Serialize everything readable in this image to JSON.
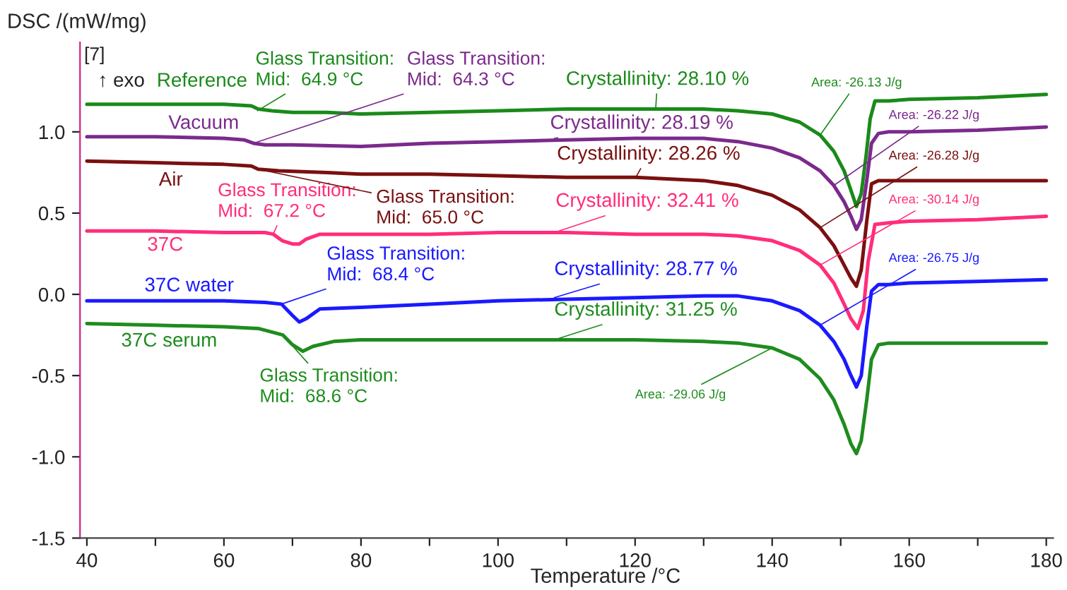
{
  "chart_data": {
    "type": "line",
    "xlabel": "Temperature /°C",
    "ylabel": "DSC /(mW/mg)",
    "xlim": [
      39,
      181
    ],
    "ylim": [
      -1.5,
      1.55
    ],
    "xticks": [
      40,
      {
        "value": 50,
        "label": null
      },
      60,
      {
        "value": 70,
        "label": null
      },
      80,
      {
        "value": 90,
        "label": null
      },
      100,
      {
        "value": 110,
        "label": null
      },
      120,
      {
        "value": 130,
        "label": null
      },
      140,
      {
        "value": 150,
        "label": null
      },
      160,
      {
        "value": 170,
        "label": null
      },
      180
    ],
    "yticks": [
      {
        "value": -1.5,
        "label": "-1.5"
      },
      {
        "value": -1.0,
        "label": "-1.0"
      },
      {
        "value": -0.5,
        "label": "-0.5"
      },
      {
        "value": 0.0,
        "label": "0.0"
      },
      {
        "value": 0.5,
        "label": "0.5"
      },
      {
        "value": 1.0,
        "label": "1.0"
      }
    ],
    "grid": false,
    "legend": false,
    "series": [
      {
        "name": "Reference",
        "color": "#1a8a1a",
        "x": [
          40,
          50,
          60,
          64,
          65,
          67,
          70,
          75,
          80,
          90,
          100,
          110,
          120,
          130,
          135,
          140,
          144,
          147,
          149,
          150.5,
          151.5,
          152.3,
          153,
          153.7,
          154.3,
          155,
          157,
          160,
          170,
          180
        ],
        "values": [
          1.17,
          1.17,
          1.17,
          1.16,
          1.14,
          1.13,
          1.12,
          1.12,
          1.11,
          1.12,
          1.13,
          1.14,
          1.14,
          1.14,
          1.13,
          1.11,
          1.06,
          0.98,
          0.88,
          0.76,
          0.64,
          0.54,
          0.62,
          0.85,
          1.08,
          1.19,
          1.19,
          1.2,
          1.21,
          1.23
        ]
      },
      {
        "name": "Vacuum",
        "color": "#7b2a8c",
        "x": [
          40,
          50,
          60,
          63,
          64.3,
          66,
          70,
          80,
          90,
          100,
          110,
          120,
          130,
          135,
          140,
          144,
          147,
          149,
          150.5,
          151.5,
          152.3,
          153,
          153.8,
          154.5,
          155.5,
          157,
          160,
          170,
          180
        ],
        "values": [
          0.97,
          0.97,
          0.96,
          0.95,
          0.93,
          0.92,
          0.92,
          0.91,
          0.93,
          0.94,
          0.95,
          0.96,
          0.96,
          0.94,
          0.9,
          0.84,
          0.76,
          0.67,
          0.57,
          0.48,
          0.4,
          0.46,
          0.7,
          0.93,
          0.99,
          1.0,
          1.0,
          1.01,
          1.03
        ]
      },
      {
        "name": "Air",
        "color": "#7a1010",
        "x": [
          40,
          50,
          60,
          64,
          65,
          68,
          75,
          80,
          90,
          100,
          110,
          120,
          130,
          135,
          140,
          144,
          147,
          149,
          150.5,
          151.5,
          152.3,
          153,
          153.8,
          154.5,
          155.5,
          157,
          160,
          170,
          180
        ],
        "values": [
          0.82,
          0.81,
          0.8,
          0.79,
          0.77,
          0.76,
          0.75,
          0.74,
          0.74,
          0.73,
          0.72,
          0.72,
          0.7,
          0.67,
          0.61,
          0.52,
          0.41,
          0.3,
          0.18,
          0.1,
          0.05,
          0.15,
          0.45,
          0.68,
          0.7,
          0.7,
          0.7,
          0.7,
          0.7
        ]
      },
      {
        "name": "37C",
        "color": "#ff2d7a",
        "x": [
          40,
          50,
          60,
          66,
          67.2,
          68.5,
          70,
          71,
          72,
          74,
          80,
          90,
          100,
          110,
          120,
          130,
          135,
          140,
          144,
          147,
          149,
          150.5,
          151.5,
          152.5,
          153.3,
          154,
          155,
          157,
          160,
          170,
          180
        ],
        "values": [
          0.39,
          0.39,
          0.38,
          0.38,
          0.37,
          0.33,
          0.31,
          0.31,
          0.34,
          0.37,
          0.37,
          0.37,
          0.38,
          0.38,
          0.37,
          0.37,
          0.36,
          0.33,
          0.27,
          0.18,
          0.07,
          -0.06,
          -0.15,
          -0.21,
          -0.1,
          0.2,
          0.43,
          0.44,
          0.45,
          0.46,
          0.48
        ]
      },
      {
        "name": "37C water",
        "color": "#1a1aff",
        "x": [
          40,
          50,
          60,
          66,
          68.4,
          70,
          71,
          72,
          74,
          80,
          90,
          100,
          110,
          120,
          130,
          135,
          140,
          144,
          147,
          149,
          150.5,
          151.5,
          152.3,
          153,
          153.8,
          154.5,
          155.5,
          157,
          160,
          170,
          180
        ],
        "values": [
          -0.04,
          -0.04,
          -0.04,
          -0.05,
          -0.06,
          -0.13,
          -0.17,
          -0.15,
          -0.09,
          -0.08,
          -0.06,
          -0.04,
          -0.03,
          -0.02,
          -0.01,
          -0.01,
          -0.04,
          -0.1,
          -0.19,
          -0.29,
          -0.4,
          -0.5,
          -0.57,
          -0.5,
          -0.2,
          0.02,
          0.06,
          0.06,
          0.07,
          0.08,
          0.09
        ]
      },
      {
        "name": "37C serum",
        "color": "#1e8c1e",
        "x": [
          40,
          50,
          60,
          65,
          68.6,
          70,
          71.5,
          73,
          76,
          80,
          90,
          100,
          110,
          120,
          130,
          135,
          140,
          144,
          147,
          149,
          150.5,
          151.5,
          152.3,
          153,
          153.8,
          154.5,
          155.5,
          157,
          160,
          170,
          180
        ],
        "values": [
          -0.18,
          -0.19,
          -0.2,
          -0.21,
          -0.25,
          -0.31,
          -0.35,
          -0.32,
          -0.29,
          -0.28,
          -0.28,
          -0.28,
          -0.28,
          -0.28,
          -0.29,
          -0.3,
          -0.33,
          -0.4,
          -0.52,
          -0.65,
          -0.8,
          -0.92,
          -0.98,
          -0.9,
          -0.65,
          -0.4,
          -0.31,
          -0.3,
          -0.3,
          -0.3,
          -0.3
        ]
      }
    ],
    "annotations": [
      {
        "text": "Glass Transition:\nMid:  64.9 °C",
        "x": 64.9,
        "y": 1.13
      },
      {
        "text": "Glass Transition:\nMid:  64.3 °C",
        "x": 64.3,
        "y": 0.93
      },
      {
        "text": "Glass Transition:\nMid:  67.2 °C",
        "x": 67.2,
        "y": 0.37
      },
      {
        "text": "Glass Transition:\nMid:  65.0 °C",
        "x": 65.0,
        "y": 0.77
      },
      {
        "text": "Glass Transition:\nMid:  68.4 °C",
        "x": 68.4,
        "y": -0.06
      },
      {
        "text": "Glass Transition:\nMid:  68.6 °C",
        "x": 68.6,
        "y": -0.25
      },
      {
        "text": "Crystallinity: 28.10 %",
        "x": 123,
        "y": 1.14
      },
      {
        "text": "Crystallinity: 28.19 %",
        "x": 108.2,
        "y": 0.96
      },
      {
        "text": "Crystallinity: 28.26 %",
        "x": 120.1,
        "y": 0.72
      },
      {
        "text": "Crystallinity: 32.41 %",
        "x": 108.2,
        "y": 0.38
      },
      {
        "text": "Crystallinity: 28.77 %",
        "x": 108.2,
        "y": -0.02
      },
      {
        "text": "Crystallinity: 31.25 %",
        "x": 108.2,
        "y": -0.28
      },
      {
        "text": "Area: -26.13 J/g",
        "x": 147,
        "y": 0.98
      },
      {
        "text": "Area: -26.22 J/g",
        "x": 149,
        "y": 0.67
      },
      {
        "text": "Area: -26.28 J/g",
        "x": 147,
        "y": 0.41
      },
      {
        "text": "Area: -30.14 J/g",
        "x": 147,
        "y": 0.18
      },
      {
        "text": "Area: -26.75 J/g",
        "x": 147,
        "y": -0.19
      },
      {
        "text": "Area: -29.06 J/g",
        "x": 140,
        "y": -0.33
      },
      "↑ exo",
      "[7]"
    ]
  }
}
